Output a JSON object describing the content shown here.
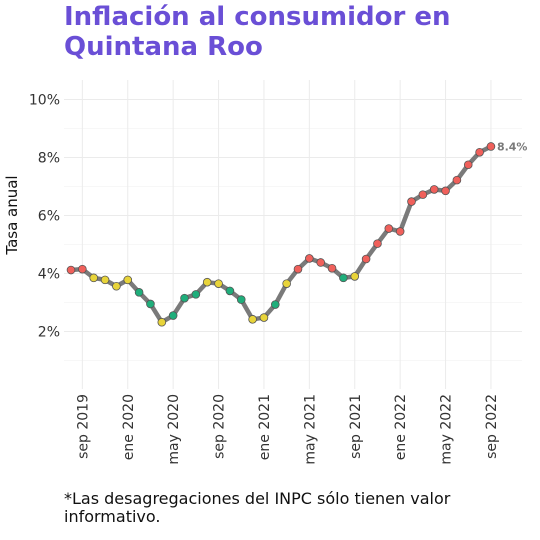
{
  "title_lines": [
    "Inflación al consumidor en",
    "Quintana Roo"
  ],
  "footnote": "*Las desagregaciones del INPC sólo tienen valor informativo.",
  "colors": {
    "title": "#6a4fd6",
    "line": "#7a7a7a",
    "red": "#f0605b",
    "yellow": "#e8d43a",
    "green": "#1fae7b",
    "grid": "#ebebeb",
    "annotation": "#7a7a7a"
  },
  "chart_data": {
    "type": "line",
    "title": "",
    "xlabel": "",
    "ylabel": "Tasa anual",
    "ylim": [
      0,
      10
    ],
    "yticks": [
      2,
      4,
      6,
      8,
      10
    ],
    "ytick_labels": [
      "2%",
      "4%",
      "6%",
      "8%",
      "10%"
    ],
    "xticks": [
      {
        "index": 1,
        "label": "sep 2019"
      },
      {
        "index": 5,
        "label": "ene 2020"
      },
      {
        "index": 9,
        "label": "may 2020"
      },
      {
        "index": 13,
        "label": "sep 2020"
      },
      {
        "index": 17,
        "label": "ene 2021"
      },
      {
        "index": 21,
        "label": "may 2021"
      },
      {
        "index": 25,
        "label": "sep 2021"
      },
      {
        "index": 29,
        "label": "ene 2022"
      },
      {
        "index": 33,
        "label": "may 2022"
      },
      {
        "index": 37,
        "label": "sep 2022"
      }
    ],
    "grid": true,
    "values": [
      4.12,
      4.15,
      3.85,
      3.78,
      3.56,
      3.78,
      3.35,
      2.95,
      2.32,
      2.55,
      3.15,
      3.28,
      3.7,
      3.65,
      3.4,
      3.1,
      2.42,
      2.48,
      2.93,
      3.65,
      4.15,
      4.52,
      4.38,
      4.18,
      3.85,
      3.9,
      4.5,
      5.03,
      5.55,
      5.45,
      6.48,
      6.72,
      6.9,
      6.85,
      7.22,
      7.75,
      8.18,
      8.38
    ],
    "point_categories": [
      "red",
      "red",
      "yellow",
      "yellow",
      "yellow",
      "yellow",
      "green",
      "green",
      "yellow",
      "green",
      "green",
      "green",
      "yellow",
      "yellow",
      "green",
      "green",
      "yellow",
      "yellow",
      "green",
      "yellow",
      "red",
      "red",
      "red",
      "red",
      "green",
      "yellow",
      "red",
      "red",
      "red",
      "red",
      "red",
      "red",
      "red",
      "red",
      "red",
      "red",
      "red",
      "red"
    ],
    "last_label": "8.4%"
  }
}
